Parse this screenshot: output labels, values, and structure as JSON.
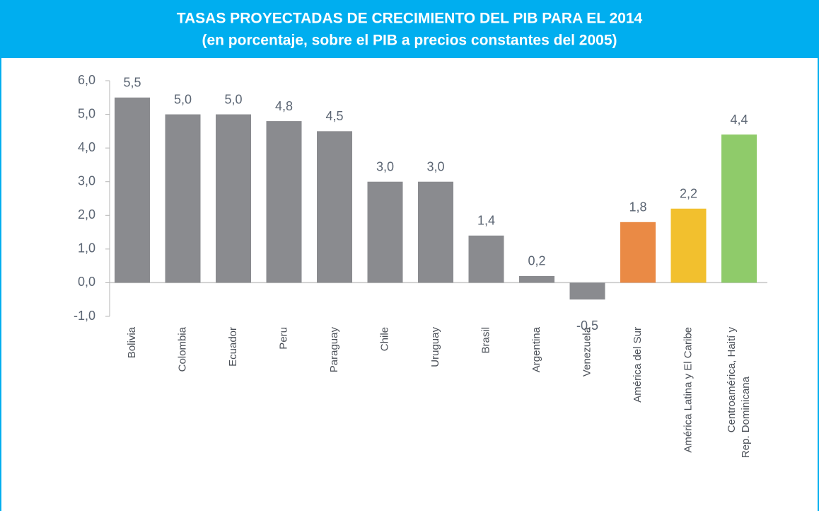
{
  "chart_data": {
    "type": "bar",
    "title": "TASAS PROYECTADAS DE CRECIMIENTO DEL PIB PARA EL 2014",
    "subtitle": "(en porcentaje, sobre el PIB a precios constantes del 2005)",
    "categories": [
      "Bolivia",
      "Colombia",
      "Ecuador",
      "Peru",
      "Paraguay",
      "Chile",
      "Uruguay",
      "Brasil",
      "Argentina",
      "Venezuela",
      "América del Sur",
      "América Latina y El Caribe",
      "Centroamérica, Haití y Rep. Dominicana"
    ],
    "values": [
      5.5,
      5.0,
      5.0,
      4.8,
      4.5,
      3.0,
      3.0,
      1.4,
      0.2,
      -0.5,
      1.8,
      2.2,
      4.4
    ],
    "value_labels": [
      "5,5",
      "5,0",
      "5,0",
      "4,8",
      "4,5",
      "3,0",
      "3,0",
      "1,4",
      "0,2",
      "-0,5",
      "1,8",
      "2,2",
      "4,4"
    ],
    "colors": [
      "#8a8b8f",
      "#8a8b8f",
      "#8a8b8f",
      "#8a8b8f",
      "#8a8b8f",
      "#8a8b8f",
      "#8a8b8f",
      "#8a8b8f",
      "#8a8b8f",
      "#8a8b8f",
      "#ea8a45",
      "#f2c02e",
      "#8fcb6a"
    ],
    "ylim": [
      -1,
      6
    ],
    "yticks": [
      {
        "value": -1,
        "label": "-1,0"
      },
      {
        "value": 0,
        "label": "0,0"
      },
      {
        "value": 1,
        "label": "1,0"
      },
      {
        "value": 2,
        "label": "2,0"
      },
      {
        "value": 3,
        "label": "3,0"
      },
      {
        "value": 4,
        "label": "4,0"
      },
      {
        "value": 5,
        "label": "5,0"
      },
      {
        "value": 6,
        "label": "6,0"
      }
    ]
  }
}
